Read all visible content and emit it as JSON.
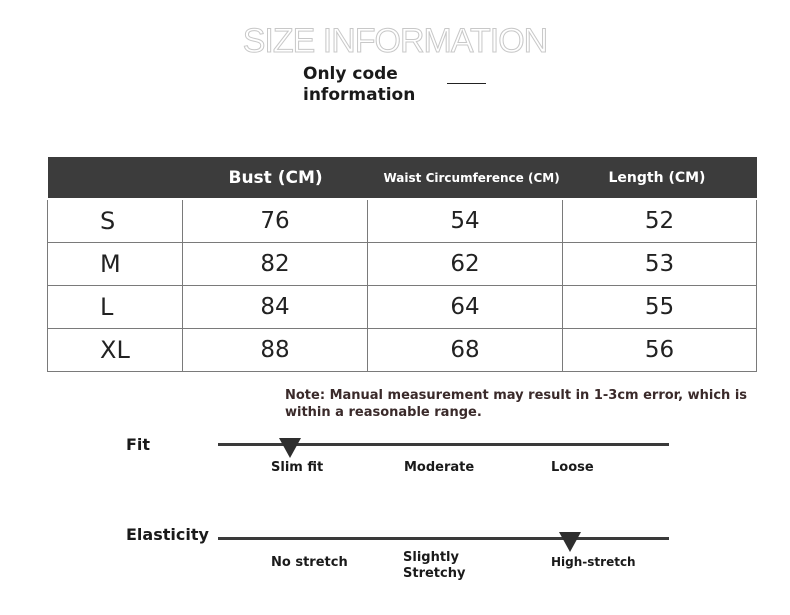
{
  "header": {
    "title": "SIZE INFORMATION",
    "subtitle": "Only code information"
  },
  "table": {
    "columns": [
      "",
      "Bust (CM)",
      "Waist Circumference (CM)",
      "Length (CM)"
    ],
    "rows": [
      {
        "size": "S",
        "bust": "76",
        "waist": "54",
        "length": "52"
      },
      {
        "size": "M",
        "bust": "82",
        "waist": "62",
        "length": "53"
      },
      {
        "size": "L",
        "bust": "84",
        "waist": "64",
        "length": "55"
      },
      {
        "size": "XL",
        "bust": "88",
        "waist": "68",
        "length": "56"
      }
    ]
  },
  "note": "Note: Manual measurement may result in 1-3cm error, which is within a reasonable range.",
  "fit": {
    "label": "Fit",
    "options": [
      "Slim fit",
      "Moderate",
      "Loose"
    ],
    "selected": "Slim fit"
  },
  "elasticity": {
    "label": "Elasticity",
    "options": [
      "No stretch",
      "Slightly Stretchy",
      "High-stretch"
    ],
    "selected": "High-stretch"
  },
  "colors": {
    "header_bg": "#3c3c3c",
    "grid": "#7a7a7a",
    "marker": "#2e2e2e"
  }
}
